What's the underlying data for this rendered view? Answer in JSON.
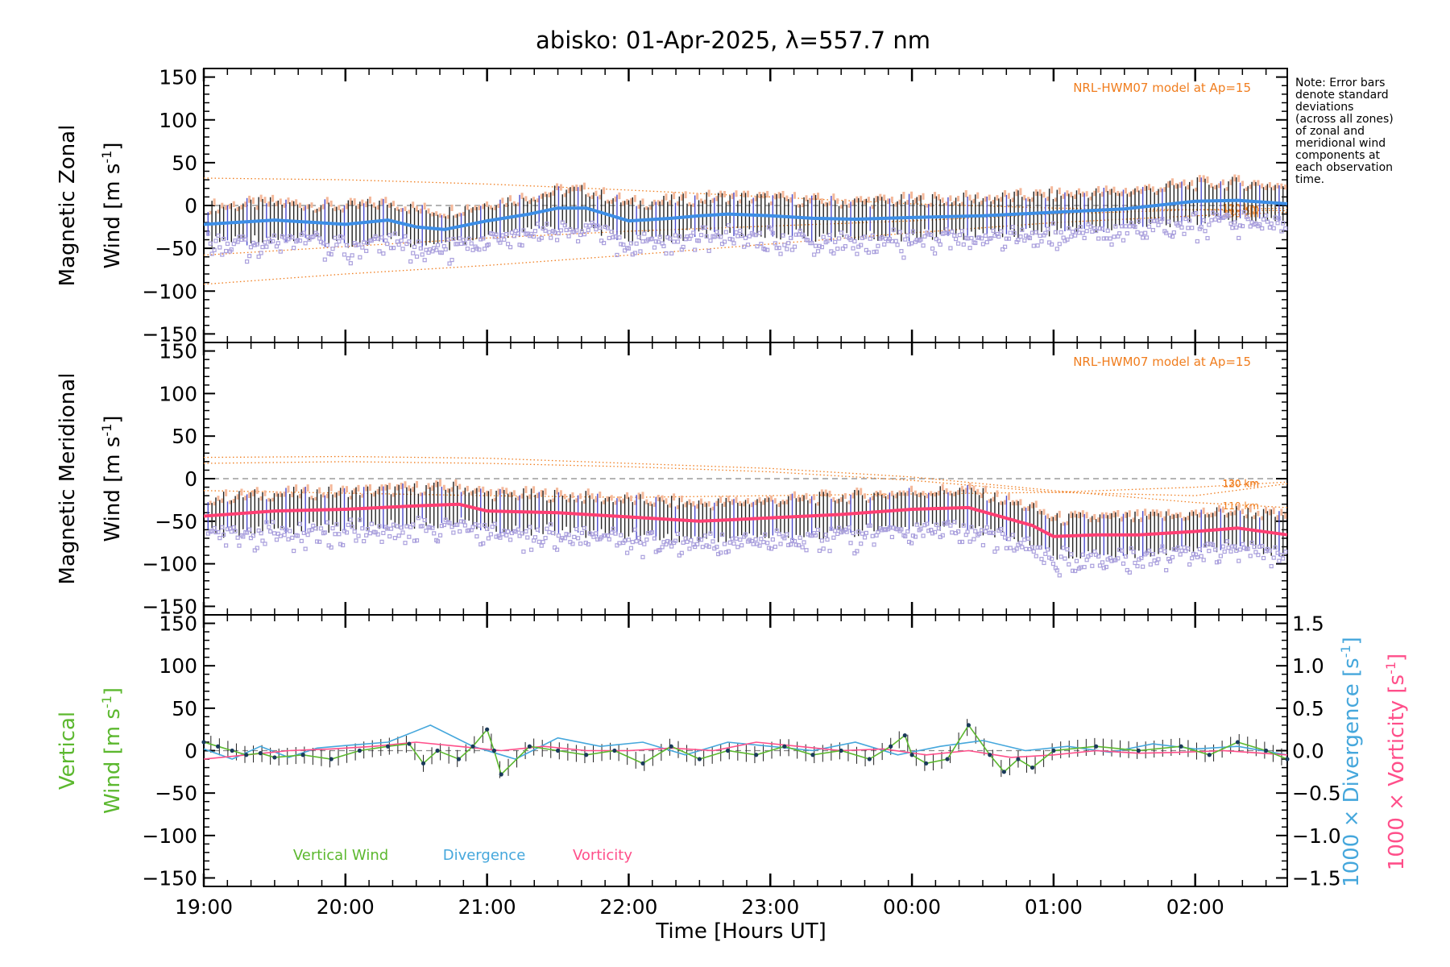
{
  "title": "abisko: 01-Apr-2025, λ=557.7 nm",
  "note": "Note: Error bars\ndenote standard\ndeviations\n(across all zones)\nof zonal and\nmeridional wind\ncomponents at\neach observation\ntime.",
  "colors": {
    "zonal": "#3d8ee6",
    "meridional": "#ff3f73",
    "vertical": "#5cb82f",
    "divergence": "#45a7dc",
    "vorticity": "#ff4f8a",
    "model": "#f07d1e",
    "scatter": "#aaa0dd",
    "errorbar": "#222222",
    "zero_line": "#888888"
  },
  "chart_data": {
    "type": "line",
    "grid": false,
    "xlabel": "Time [Hours UT]",
    "x_range_hours": [
      19.0,
      26.65
    ],
    "x_tick_labels": [
      "19:00",
      "20:00",
      "21:00",
      "22:00",
      "23:00",
      "00:00",
      "01:00",
      "02:00"
    ],
    "panels": [
      {
        "name": "zonal",
        "ylabel_line1": "Magnetic Zonal",
        "ylabel_line2": "Wind [m s",
        "ylabel_sup": "-1",
        "ylabel_close": "]",
        "ylim": [
          -160,
          160
        ],
        "y_tick_labels": [
          "150",
          "100",
          "50",
          "0",
          "−50",
          "−100",
          "−150"
        ],
        "model_label": "NRL-HWM07 model at Ap=15",
        "altitude_labels": [
          "110 km",
          "120 km",
          "130 km"
        ],
        "series": {
          "x": [
            19.0,
            19.5,
            20.0,
            20.3,
            20.5,
            20.7,
            21.0,
            21.3,
            21.5,
            21.7,
            22.0,
            22.3,
            22.5,
            22.7,
            23.0,
            23.3,
            23.6,
            24.0,
            24.5,
            25.0,
            25.5,
            26.0,
            26.3,
            26.65
          ],
          "y": [
            -22,
            -17,
            -22,
            -17,
            -25,
            -28,
            -18,
            -10,
            -3,
            -3,
            -18,
            -15,
            -12,
            -10,
            -12,
            -15,
            -16,
            -14,
            -12,
            -8,
            -4,
            5,
            6,
            2
          ]
        },
        "model": [
          {
            "label": "110 km",
            "x": [
              19.0,
              20.0,
              21.0,
              22.0,
              23.0,
              24.0,
              25.0,
              26.0,
              26.65
            ],
            "y": [
              32,
              30,
              25,
              18,
              10,
              2,
              -3,
              -5,
              -6
            ]
          },
          {
            "label": "120 km",
            "x": [
              19.0,
              20.0,
              21.0,
              22.0,
              23.0,
              24.0,
              25.0,
              26.0,
              26.65
            ],
            "y": [
              -58,
              -48,
              -38,
              -30,
              -24,
              -18,
              -10,
              -5,
              -3
            ]
          },
          {
            "label": "130 km",
            "x": [
              19.0,
              20.0,
              21.0,
              22.0,
              23.0,
              24.0,
              25.0,
              26.0,
              26.65
            ],
            "y": [
              -92,
              -80,
              -70,
              -58,
              -45,
              -32,
              -20,
              -12,
              -8
            ]
          }
        ]
      },
      {
        "name": "meridional",
        "ylabel_line1": "Magnetic Meridional",
        "ylabel_line2": "Wind [m s",
        "ylabel_sup": "-1",
        "ylabel_close": "]",
        "ylim": [
          -160,
          160
        ],
        "y_tick_labels": [
          "150",
          "100",
          "50",
          "0",
          "−50",
          "−100",
          "−150"
        ],
        "model_label": "NRL-HWM07 model at Ap=15",
        "altitude_labels": [
          "110 km",
          "120 km",
          "130 km"
        ],
        "series": {
          "x": [
            19.0,
            19.5,
            20.0,
            20.5,
            20.8,
            21.0,
            21.5,
            22.0,
            22.5,
            23.0,
            23.5,
            24.0,
            24.4,
            24.7,
            24.85,
            25.0,
            25.3,
            25.6,
            26.0,
            26.3,
            26.65
          ],
          "y": [
            -44,
            -38,
            -36,
            -32,
            -30,
            -38,
            -40,
            -45,
            -50,
            -46,
            -42,
            -36,
            -34,
            -48,
            -55,
            -68,
            -66,
            -66,
            -62,
            -58,
            -66
          ]
        },
        "model": [
          {
            "label": "110 km",
            "x": [
              19.0,
              20.0,
              21.0,
              22.0,
              23.0,
              24.0,
              25.0,
              26.0,
              26.65
            ],
            "y": [
              25,
              26,
              24,
              18,
              12,
              2,
              -14,
              -28,
              -34
            ]
          },
          {
            "label": "120 km",
            "x": [
              19.0,
              20.0,
              21.0,
              22.0,
              23.0,
              24.0,
              25.0,
              26.0,
              26.65
            ],
            "y": [
              18,
              20,
              18,
              14,
              8,
              -2,
              -16,
              -20,
              -6
            ]
          },
          {
            "label": "130 km",
            "x": [
              19.0,
              20.0,
              21.0,
              22.0,
              23.0,
              24.0,
              25.0,
              26.0,
              26.65
            ],
            "y": [
              -14,
              -17,
              -20,
              -22,
              -20,
              -18,
              -16,
              -10,
              -4
            ]
          }
        ]
      },
      {
        "name": "vertical",
        "ylabel_line1": "Vertical",
        "ylabel_line2": "Wind [m s",
        "ylabel_sup": "-1",
        "ylabel_close": "]",
        "ylim": [
          -160,
          160
        ],
        "y_tick_labels": [
          "150",
          "100",
          "50",
          "0",
          "−50",
          "−100",
          "−150"
        ],
        "right_axis": {
          "ylim": [
            -1.6,
            1.6
          ],
          "tick_labels": [
            "1.5",
            "1.0",
            "0.5",
            "0.0",
            "−0.5",
            "−1.0",
            "−1.5"
          ],
          "label_divergence": "1000 × Divergence [s",
          "label_vorticity": "1000 × Vorticity [s",
          "label_sup": "-1",
          "label_close": "]"
        },
        "legend": [
          "Vertical Wind",
          "Divergence",
          "Vorticity"
        ],
        "series": [
          {
            "name": "Vertical Wind",
            "x": [
              19.0,
              19.1,
              19.2,
              19.3,
              19.4,
              19.5,
              19.7,
              19.9,
              20.1,
              20.3,
              20.45,
              20.55,
              20.65,
              20.8,
              20.9,
              21.0,
              21.05,
              21.1,
              21.3,
              21.5,
              21.7,
              21.9,
              22.1,
              22.3,
              22.5,
              22.7,
              22.9,
              23.1,
              23.3,
              23.5,
              23.7,
              23.85,
              23.95,
              24.0,
              24.1,
              24.25,
              24.4,
              24.55,
              24.65,
              24.75,
              24.85,
              25.0,
              25.3,
              25.6,
              25.9,
              26.1,
              26.3,
              26.5,
              26.65
            ],
            "y": [
              10,
              5,
              0,
              -5,
              -3,
              -8,
              -5,
              -10,
              0,
              5,
              8,
              -15,
              0,
              -10,
              5,
              25,
              0,
              -28,
              5,
              0,
              -5,
              0,
              -15,
              5,
              -10,
              0,
              -5,
              5,
              -5,
              0,
              -10,
              5,
              18,
              -5,
              -15,
              -10,
              30,
              -5,
              -25,
              -10,
              -20,
              0,
              5,
              0,
              5,
              -5,
              10,
              0,
              -10
            ]
          },
          {
            "name": "Divergence",
            "x": [
              19.0,
              19.2,
              19.4,
              19.6,
              19.8,
              20.0,
              20.3,
              20.6,
              20.9,
              21.2,
              21.5,
              21.8,
              22.1,
              22.4,
              22.7,
              23.0,
              23.3,
              23.6,
              23.9,
              24.2,
              24.5,
              24.8,
              25.1,
              25.4,
              25.7,
              26.0,
              26.3,
              26.65
            ],
            "y": [
              0.02,
              -0.1,
              0.05,
              -0.08,
              0.03,
              0.06,
              0.1,
              0.3,
              0.05,
              -0.1,
              0.15,
              0.05,
              0.1,
              -0.05,
              0.1,
              0.05,
              0.0,
              0.1,
              -0.05,
              0.05,
              0.12,
              0.0,
              0.05,
              -0.02,
              0.08,
              0.02,
              0.05,
              -0.05
            ]
          },
          {
            "name": "Vorticity",
            "x": [
              19.0,
              19.3,
              19.6,
              19.9,
              20.2,
              20.5,
              20.8,
              21.1,
              21.4,
              21.7,
              22.0,
              22.3,
              22.6,
              22.9,
              23.2,
              23.5,
              23.8,
              24.1,
              24.4,
              24.7,
              25.0,
              25.3,
              25.6,
              25.9,
              26.2,
              26.65
            ],
            "y": [
              -0.1,
              -0.05,
              0.0,
              0.02,
              0.05,
              0.1,
              0.05,
              0.0,
              0.05,
              0.0,
              0.0,
              0.03,
              0.0,
              0.1,
              0.05,
              0.0,
              0.02,
              -0.05,
              0.0,
              -0.08,
              -0.05,
              0.0,
              -0.03,
              -0.02,
              0.0,
              -0.05
            ]
          }
        ]
      }
    ]
  }
}
